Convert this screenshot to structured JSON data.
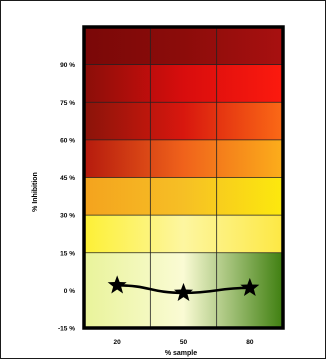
{
  "chart_data": {
    "type": "line",
    "title": "",
    "xlabel": "% sample",
    "ylabel": "% Inhibition",
    "categories": [
      "20",
      "50",
      "80"
    ],
    "y_tick_labels": [
      "-15 %",
      "0 %",
      "15 %",
      "30 %",
      "45 %",
      "60 %",
      "75 %",
      "90 %"
    ],
    "y_ticks": [
      -15,
      0,
      15,
      30,
      45,
      60,
      75,
      90
    ],
    "ylim": [
      -15,
      105
    ],
    "series": [
      {
        "values": [
          2,
          -1,
          1
        ],
        "marker": "star",
        "color": "#000000"
      }
    ],
    "background_bands": [
      {
        "from": -15,
        "to": 15,
        "colors": [
          "#e9f39a",
          "#fafbd4",
          "#3f7f10"
        ]
      },
      {
        "from": 15,
        "to": 30,
        "colors": [
          "#fdf035",
          "#fdf6a0",
          "#fde843"
        ]
      },
      {
        "from": 30,
        "to": 45,
        "colors": [
          "#f4a31e",
          "#f6bf25",
          "#fce90d"
        ]
      },
      {
        "from": 45,
        "to": 60,
        "colors": [
          "#b51a0d",
          "#f0621b",
          "#fcae1b"
        ]
      },
      {
        "from": 60,
        "to": 75,
        "colors": [
          "#8a140a",
          "#d8170e",
          "#fb6a16"
        ]
      },
      {
        "from": 75,
        "to": 90,
        "colors": [
          "#8a0e09",
          "#d80d0d",
          "#fc1a0e"
        ]
      },
      {
        "from": 90,
        "to": 105,
        "colors": [
          "#7a0808",
          "#8c0c0a",
          "#a81010"
        ]
      }
    ],
    "grid": true,
    "legend": "none"
  }
}
